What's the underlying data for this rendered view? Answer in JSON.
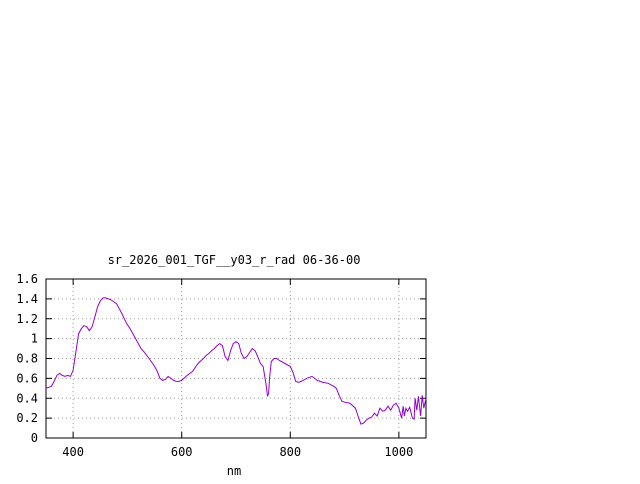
{
  "chart_data": {
    "type": "line",
    "title": "sr_2026_001_TGF__y03_r_rad 06-36-00",
    "xlabel": "nm",
    "ylabel": "",
    "xlim": [
      350,
      1050
    ],
    "ylim": [
      0,
      1.6
    ],
    "xticks": [
      400,
      600,
      800,
      1000
    ],
    "yticks": [
      0,
      0.2,
      0.4,
      0.6,
      0.8,
      1,
      1.2,
      1.4,
      1.6
    ],
    "xtick_labels": [
      "400",
      "600",
      "800",
      "1000"
    ],
    "ytick_labels": [
      "0",
      "0.2",
      "0.4",
      "0.6",
      "0.8",
      "1",
      "1.2",
      "1.4",
      "1.6"
    ],
    "grid": true,
    "line_color": "#9400d3",
    "series": [
      {
        "x": [
          350,
          360,
          365,
          370,
          375,
          380,
          385,
          390,
          395,
          400,
          410,
          415,
          420,
          425,
          430,
          435,
          440,
          445,
          450,
          455,
          460,
          465,
          470,
          475,
          480,
          485,
          490,
          495,
          500,
          505,
          510,
          515,
          520,
          525,
          530,
          540,
          550,
          555,
          560,
          565,
          570,
          575,
          580,
          585,
          590,
          595,
          600,
          610,
          620,
          630,
          640,
          645,
          650,
          655,
          660,
          665,
          670,
          675,
          680,
          685,
          690,
          695,
          700,
          705,
          710,
          715,
          720,
          725,
          730,
          735,
          740,
          745,
          750,
          755,
          758,
          760,
          762,
          765,
          770,
          775,
          780,
          790,
          800,
          805,
          810,
          815,
          820,
          830,
          840,
          850,
          855,
          860,
          870,
          880,
          885,
          890,
          895,
          900,
          910,
          920,
          925,
          930,
          935,
          940,
          945,
          950,
          955,
          960,
          965,
          970,
          975,
          980,
          985,
          990,
          995,
          1000,
          1005,
          1008,
          1010,
          1013,
          1016,
          1020,
          1025,
          1028,
          1030,
          1033,
          1036,
          1040,
          1043,
          1046,
          1050
        ],
        "y": [
          0.5,
          0.52,
          0.57,
          0.63,
          0.65,
          0.63,
          0.62,
          0.63,
          0.62,
          0.68,
          1.05,
          1.1,
          1.13,
          1.12,
          1.08,
          1.12,
          1.22,
          1.32,
          1.38,
          1.41,
          1.41,
          1.4,
          1.39,
          1.37,
          1.35,
          1.3,
          1.25,
          1.19,
          1.14,
          1.1,
          1.05,
          1.0,
          0.95,
          0.9,
          0.87,
          0.8,
          0.72,
          0.67,
          0.6,
          0.58,
          0.59,
          0.62,
          0.6,
          0.58,
          0.57,
          0.57,
          0.58,
          0.63,
          0.67,
          0.75,
          0.8,
          0.83,
          0.85,
          0.88,
          0.9,
          0.93,
          0.95,
          0.93,
          0.82,
          0.78,
          0.88,
          0.95,
          0.97,
          0.95,
          0.85,
          0.8,
          0.82,
          0.86,
          0.9,
          0.88,
          0.82,
          0.75,
          0.72,
          0.55,
          0.42,
          0.45,
          0.62,
          0.77,
          0.8,
          0.8,
          0.78,
          0.75,
          0.72,
          0.66,
          0.57,
          0.56,
          0.57,
          0.6,
          0.62,
          0.58,
          0.57,
          0.56,
          0.55,
          0.52,
          0.5,
          0.43,
          0.37,
          0.36,
          0.35,
          0.3,
          0.22,
          0.14,
          0.15,
          0.18,
          0.2,
          0.21,
          0.25,
          0.22,
          0.3,
          0.27,
          0.28,
          0.32,
          0.28,
          0.33,
          0.35,
          0.3,
          0.2,
          0.32,
          0.22,
          0.3,
          0.27,
          0.31,
          0.2,
          0.19,
          0.4,
          0.28,
          0.42,
          0.22,
          0.43,
          0.3,
          0.4
        ]
      }
    ]
  }
}
